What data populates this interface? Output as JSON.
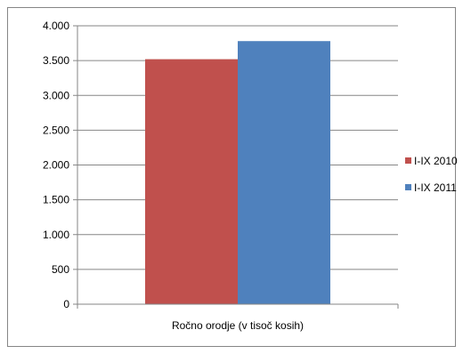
{
  "chart_data": {
    "type": "bar",
    "categories": [
      "Ročno orodje (v tisoč kosih)"
    ],
    "series": [
      {
        "name": "I-IX 2010",
        "values": [
          3520
        ],
        "color": "#C0504D"
      },
      {
        "name": "I-IX 2011",
        "values": [
          3780
        ],
        "color": "#4F81BD"
      }
    ],
    "ylim": [
      0,
      4000
    ],
    "yticks": [
      0,
      500,
      1000,
      1500,
      2000,
      2500,
      3000,
      3500,
      4000
    ],
    "ytick_labels": [
      "0",
      "500",
      "1.000",
      "1.500",
      "2.000",
      "2.500",
      "3.000",
      "3.500",
      "4.000"
    ],
    "grid": true,
    "legend_position": "right",
    "title": "",
    "xlabel": "",
    "ylabel": ""
  }
}
